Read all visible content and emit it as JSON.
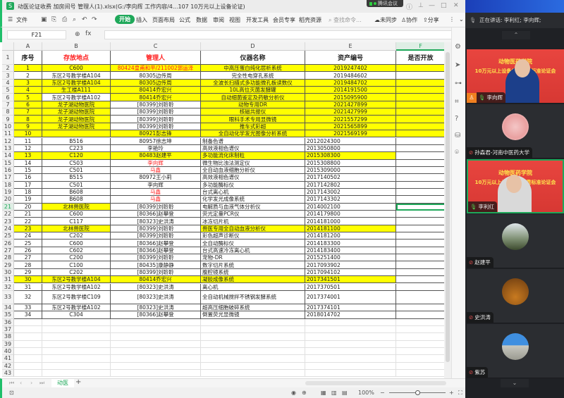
{
  "window": {
    "app_logo": "S",
    "title": "动医论证收费  加房间号 管理人(1).xlsx(G:/李向辉  工作内容/4...107 10万元以上设备论证)",
    "meeting_badge": "腾讯会议"
  },
  "menu": {
    "file": "文件",
    "items": [
      "开始",
      "插入",
      "页面布局",
      "公式",
      "数据",
      "审阅",
      "视图",
      "开发工具",
      "会员专享",
      "稻壳资源"
    ],
    "active": "开始",
    "search_placeholder": "查找命令...",
    "sync": "未同步",
    "collab": "协作",
    "share": "分享"
  },
  "formula_bar": {
    "cell_ref": "F21",
    "fx": "fx",
    "value": ""
  },
  "sheet": {
    "columns": [
      "A",
      "B",
      "C",
      "D",
      "E",
      "F"
    ],
    "selected_column": "F",
    "selected_row": 21,
    "headers": [
      "序号",
      "存放地点",
      "管理人",
      "仪器名称",
      "资产编号",
      "是否开放"
    ],
    "highlight_color": "#ffff00",
    "red_text_color": "#ff0000",
    "rows": [
      {
        "n": 2,
        "seq": "1",
        "loc": "C600",
        "mgr": "80424皇甫和平/211002郭运泽",
        "name": "中高压蛋白纯化层析系统",
        "asset": "2019247402",
        "hl": "ABCDEF",
        "red": true,
        "center": true
      },
      {
        "n": 3,
        "seq": "2",
        "loc": "东区2号教学楼A104",
        "mgr": "80305边传周",
        "name": "完全性电穿孔系统",
        "asset": "2019484602",
        "hl": "",
        "center": true
      },
      {
        "n": 4,
        "seq": "3",
        "loc": "东区2号教学楼A104",
        "mgr": "80305边传周",
        "name": "全波长扫描式多功能微孔板读数仪",
        "asset": "2019484702",
        "hl": "ABCDEF",
        "center": true
      },
      {
        "n": 5,
        "seq": "4",
        "loc": "生工楼A111",
        "mgr": "80414乔宏兴",
        "name": "10L高位灭菌发酵罐",
        "asset": "2014191500",
        "hl": "ABCDEF",
        "center": true
      },
      {
        "n": 6,
        "seq": "5",
        "loc": "东区2号教学楼A102",
        "mgr": "80414乔宏兴",
        "name": "自动细菌鉴定及药敏分析仪",
        "asset": "2015095900",
        "hl": "ACDEF",
        "center": true
      },
      {
        "n": 7,
        "seq": "6",
        "loc": "龙子湖动物医院",
        "mgr": "[80399]刘聆聆",
        "name": "动物专用DR",
        "asset": "2021427899",
        "hl": "ABDEF",
        "center": true
      },
      {
        "n": 8,
        "seq": "7",
        "loc": "龙子湖动物医院",
        "mgr": "[80399]刘聆聆",
        "name": "核磁共振仪",
        "asset": "2021427999",
        "hl": "ABDEF",
        "center": true
      },
      {
        "n": 9,
        "seq": "8",
        "loc": "龙子湖动物医院",
        "mgr": "[80399]刘聆聆",
        "name": "眼科手术专用显微镜",
        "asset": "2021557299",
        "hl": "ABDEF",
        "center": true
      },
      {
        "n": 10,
        "seq": "9",
        "loc": "龙子湖动物医院",
        "mgr": "[80399]刘聆聆",
        "name": "推车式彩超",
        "asset": "2021565899",
        "hl": "ABDEF",
        "center": true
      },
      {
        "n": 11,
        "seq": "10",
        "loc": "",
        "mgr": "80921彭志锋",
        "name": "全自动化学发光图像分析系统",
        "asset": "2021569199",
        "hl": "ABCDEF",
        "center": true
      },
      {
        "n": 12,
        "seq": "11",
        "loc": "B516",
        "mgr": "80957徐志坤",
        "name": "制备色谱",
        "asset": "2012024300",
        "hl": ""
      },
      {
        "n": 13,
        "seq": "12",
        "loc": "C223",
        "mgr": "李艳玲",
        "name": "高效液相色谱仪",
        "asset": "2013050800",
        "hl": ""
      },
      {
        "n": 14,
        "seq": "13",
        "loc": "C120",
        "mgr": "80483赵建平",
        "name": "多功能流化床制粒",
        "asset": "2015308300",
        "hl": "ABCDE"
      },
      {
        "n": 15,
        "seq": "14",
        "loc": "C503",
        "mgr": "李向辉",
        "name": "微生物比浊法测定仪",
        "asset": "2015308800",
        "hl": "",
        "red": true
      },
      {
        "n": 16,
        "seq": "15",
        "loc": "C501",
        "mgr": "马鑫",
        "name": "全自动血液细胞分析仪",
        "asset": "2015309000",
        "hl": "",
        "red": true
      },
      {
        "n": 17,
        "seq": "16",
        "loc": "B515",
        "mgr": "80972王小莉",
        "name": "高效液相色谱仪",
        "asset": "2017140502",
        "hl": ""
      },
      {
        "n": 18,
        "seq": "17",
        "loc": "C501",
        "mgr": "李向辉",
        "name": "多功能酶标仪",
        "asset": "2017142802",
        "hl": ""
      },
      {
        "n": 19,
        "seq": "18",
        "loc": "B608",
        "mgr": "马鑫",
        "name": "台式离心机",
        "asset": "2017143002",
        "hl": "",
        "red": true
      },
      {
        "n": 20,
        "seq": "19",
        "loc": "B608",
        "mgr": "马鑫",
        "name": "化学发光成像系统",
        "asset": "2017143302",
        "hl": "",
        "red": true
      },
      {
        "n": 21,
        "seq": "20",
        "loc": "北林兽医院",
        "mgr": "[80399]刘聆聆",
        "name": "电解质与血液气体分析仪",
        "asset": "2014002100",
        "hl": "B"
      },
      {
        "n": 22,
        "seq": "21",
        "loc": "C600",
        "mgr": "[80366]赵攀登",
        "name": "荧光定量PCR仪",
        "asset": "2014179800",
        "hl": ""
      },
      {
        "n": 23,
        "seq": "22",
        "loc": "C117",
        "mgr": "[80323]史洪涛",
        "name": "冰冻切片机",
        "asset": "2014181000",
        "hl": ""
      },
      {
        "n": 24,
        "seq": "23",
        "loc": "北林兽医院",
        "mgr": "[80399]刘聆聆",
        "name": "兽医专用全自动血液分析仪",
        "asset": "2014181100",
        "hl": "ABDE"
      },
      {
        "n": 25,
        "seq": "24",
        "loc": "C202",
        "mgr": "[80399]刘聆聆",
        "name": "彩色超声诊断仪",
        "asset": "2014181200",
        "hl": ""
      },
      {
        "n": 26,
        "seq": "25",
        "loc": "C600",
        "mgr": "[80366]赵攀登",
        "name": "全自动酶标仪",
        "asset": "2014183300",
        "hl": ""
      },
      {
        "n": 27,
        "seq": "26",
        "loc": "C602",
        "mgr": "[80366]赵攀登",
        "name": "台式高速冷冻离心机",
        "asset": "2014183400",
        "hl": ""
      },
      {
        "n": 28,
        "seq": "27",
        "loc": "C200",
        "mgr": "[80399]刘聆聆",
        "name": "宠物-DR",
        "asset": "2015251400",
        "hl": ""
      },
      {
        "n": 29,
        "seq": "28",
        "loc": "C100",
        "mgr": "[80435]康静静",
        "name": "数字切片系统",
        "asset": "2017093902",
        "hl": ""
      },
      {
        "n": 30,
        "seq": "29",
        "loc": "C202",
        "mgr": "[80399]刘聆聆",
        "name": "腹腔镜系统",
        "asset": "2017094102",
        "hl": ""
      },
      {
        "n": 31,
        "seq": "30",
        "loc": "东区2号教学楼A104",
        "mgr": "80414乔宏兴",
        "name": "凝胶成像系统",
        "asset": "2017341501",
        "hl": "ABCDE"
      },
      {
        "n": 32,
        "seq": "31",
        "loc": "东区2号教学楼A102",
        "mgr": "[80323]史洪涛",
        "name": "离心机",
        "asset": "2017370501",
        "hl": ""
      },
      {
        "n": 33,
        "seq": "32",
        "loc": "东区2号教学楼C109",
        "mgr": "[80323]史洪涛",
        "name": "全自动机械搅拌不锈钢发酵系统",
        "asset": "2017374001",
        "hl": "",
        "tall": true
      },
      {
        "n": 34,
        "seq": "33",
        "loc": "东区2号教学楼A102",
        "mgr": "[80323]史洪涛",
        "name": "超高压细胞破碎系统",
        "asset": "2017374101",
        "hl": ""
      },
      {
        "n": 35,
        "seq": "34",
        "loc": "C304",
        "mgr": "[80366]赵攀登",
        "name": "倒置荧光显微镜",
        "asset": "2018014702",
        "hl": ""
      }
    ],
    "empty_rows": [
      36,
      37,
      38,
      39,
      40,
      41,
      42,
      43
    ]
  },
  "sheet_tabs": {
    "tabs": [
      "动医"
    ],
    "add": "+"
  },
  "status_bar": {
    "zoom": "100%"
  },
  "meeting": {
    "speaking": "正在讲话: 李利红; 李向辉;",
    "banner_line1": "动物医药学院",
    "banner_line2": "10万元以上设备共享收费标准论证会",
    "participants": [
      {
        "name": "李向辉",
        "video": true,
        "muted": false,
        "host": true
      },
      {
        "name": "孙森君-河南中医药大学",
        "video": false,
        "muted": true
      },
      {
        "name": "李利红",
        "video": true,
        "muted": false,
        "speaking": true
      },
      {
        "name": "赵建平",
        "video": false,
        "muted": true
      },
      {
        "name": "史洪涛",
        "video": false,
        "muted": true
      },
      {
        "name": "紫苏",
        "video": false,
        "muted": true
      }
    ]
  }
}
